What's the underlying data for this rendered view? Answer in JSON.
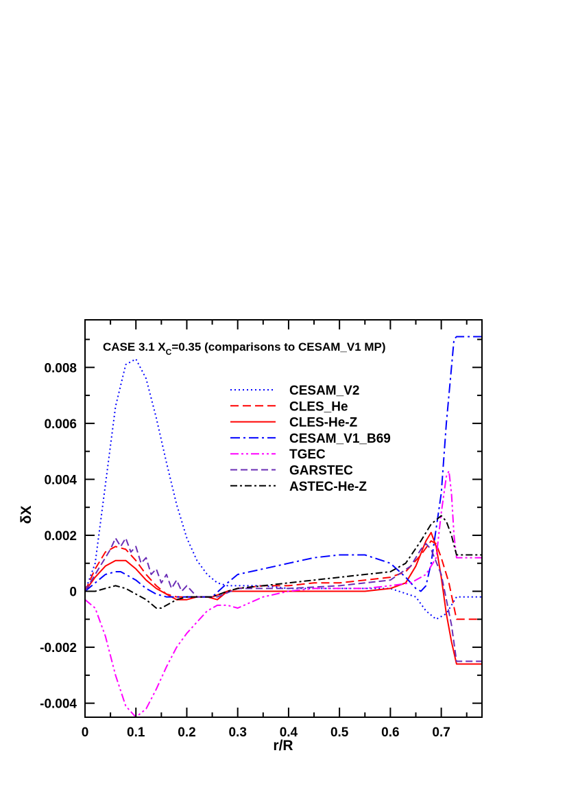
{
  "chart_data": {
    "type": "line",
    "title_prefix": "CASE 3.1 X",
    "title_sub": "C",
    "title_suffix": "=0.35 (comparisons to CESAM_V1 MP)",
    "xlabel": "r/R",
    "ylabel": "δX",
    "xlim": [
      0,
      0.78
    ],
    "ylim": [
      -0.0045,
      0.0097
    ],
    "xticks": [
      0,
      0.1,
      0.2,
      0.3,
      0.4,
      0.5,
      0.6,
      0.7
    ],
    "xtick_labels": [
      "0",
      "0.1",
      "0.2",
      "0.3",
      "0.4",
      "0.5",
      "0.6",
      "0.7"
    ],
    "yticks": [
      -0.004,
      -0.002,
      0,
      0.002,
      0.004,
      0.006,
      0.008
    ],
    "ytick_labels": [
      "-0.004",
      "-0.002",
      "0",
      "0.002",
      "0.004",
      "0.006",
      "0.008"
    ],
    "grid": false,
    "legend_position": "top-center",
    "series": [
      {
        "name": "CESAM_V2",
        "color": "#0000ff",
        "dash": "2,4",
        "x": [
          0,
          0.02,
          0.04,
          0.06,
          0.08,
          0.1,
          0.12,
          0.14,
          0.16,
          0.18,
          0.2,
          0.22,
          0.24,
          0.26,
          0.28,
          0.3,
          0.35,
          0.4,
          0.45,
          0.5,
          0.55,
          0.6,
          0.65,
          0.67,
          0.69,
          0.71,
          0.73,
          0.735,
          0.78
        ],
        "y": [
          0.0,
          0.001,
          0.0038,
          0.0066,
          0.0081,
          0.0083,
          0.0076,
          0.0062,
          0.0046,
          0.0031,
          0.0019,
          0.0011,
          0.0006,
          0.0003,
          0.0002,
          0.0002,
          0.0002,
          0.0001,
          0.0001,
          0.0001,
          0.0001,
          0.0001,
          -0.0002,
          -0.0007,
          -0.001,
          -0.0008,
          -0.0002,
          -0.0002,
          -0.0002
        ]
      },
      {
        "name": "CLES_He",
        "color": "#ff0000",
        "dash": "12,6",
        "x": [
          0,
          0.02,
          0.04,
          0.06,
          0.08,
          0.1,
          0.12,
          0.14,
          0.16,
          0.18,
          0.2,
          0.22,
          0.25,
          0.28,
          0.3,
          0.35,
          0.4,
          0.45,
          0.5,
          0.55,
          0.6,
          0.63,
          0.66,
          0.68,
          0.69,
          0.7,
          0.715,
          0.73,
          0.735,
          0.78
        ],
        "y": [
          0.0,
          0.0008,
          0.0014,
          0.0016,
          0.0015,
          0.0011,
          0.0006,
          0.0002,
          -0.0001,
          -0.0002,
          -0.0002,
          -0.0002,
          -0.0002,
          0.0,
          0.0001,
          0.0002,
          0.0002,
          0.0003,
          0.0003,
          0.0004,
          0.0005,
          0.0007,
          0.0013,
          0.0018,
          0.0017,
          0.0012,
          0.0003,
          -0.001,
          -0.001,
          -0.001
        ]
      },
      {
        "name": "CLES-He-Z",
        "color": "#ff0000",
        "dash": "",
        "x": [
          0,
          0.02,
          0.04,
          0.06,
          0.08,
          0.1,
          0.12,
          0.14,
          0.16,
          0.18,
          0.2,
          0.22,
          0.24,
          0.26,
          0.28,
          0.3,
          0.35,
          0.4,
          0.45,
          0.5,
          0.55,
          0.6,
          0.63,
          0.65,
          0.67,
          0.68,
          0.69,
          0.7,
          0.71,
          0.72,
          0.73,
          0.78
        ],
        "y": [
          0.0,
          0.0005,
          0.0009,
          0.0011,
          0.0011,
          0.0008,
          0.0004,
          0.0001,
          -0.0001,
          -0.0003,
          -0.0003,
          -0.0002,
          -0.0002,
          -0.0003,
          0.0,
          0.0,
          0.0,
          0.0,
          0.0,
          0.0,
          0.0,
          0.0001,
          0.0003,
          0.0009,
          0.0018,
          0.0021,
          0.0016,
          0.0005,
          -0.0008,
          -0.0018,
          -0.0026,
          -0.0026
        ]
      },
      {
        "name": "CESAM_V1_B69",
        "color": "#0000ff",
        "dash": "14,5,3,5",
        "x": [
          0,
          0.02,
          0.04,
          0.06,
          0.07,
          0.08,
          0.1,
          0.12,
          0.14,
          0.16,
          0.18,
          0.2,
          0.22,
          0.25,
          0.28,
          0.3,
          0.35,
          0.4,
          0.45,
          0.5,
          0.55,
          0.6,
          0.63,
          0.65,
          0.66,
          0.67,
          0.68,
          0.7,
          0.71,
          0.72,
          0.725,
          0.73,
          0.78
        ],
        "y": [
          0.0,
          0.0003,
          0.0006,
          0.0007,
          0.0007,
          0.0006,
          0.0004,
          0.0001,
          -0.0001,
          -0.0002,
          -0.0002,
          -0.0002,
          -0.0002,
          -0.0002,
          0.0003,
          0.0006,
          0.0008,
          0.001,
          0.0012,
          0.0013,
          0.0013,
          0.001,
          0.0005,
          0.0001,
          0.0,
          0.0002,
          0.001,
          0.0035,
          0.006,
          0.008,
          0.009,
          0.0091,
          0.0091
        ]
      },
      {
        "name": "TGEC",
        "color": "#ff00ff",
        "dash": "12,4,3,4,3,4",
        "x": [
          0,
          0.02,
          0.04,
          0.06,
          0.08,
          0.1,
          0.12,
          0.14,
          0.16,
          0.18,
          0.2,
          0.22,
          0.24,
          0.26,
          0.28,
          0.3,
          0.35,
          0.4,
          0.45,
          0.5,
          0.55,
          0.6,
          0.64,
          0.67,
          0.69,
          0.7,
          0.71,
          0.715,
          0.72,
          0.725,
          0.73,
          0.78
        ],
        "y": [
          -0.0003,
          -0.0006,
          -0.0016,
          -0.003,
          -0.0041,
          -0.0045,
          -0.0042,
          -0.0035,
          -0.0027,
          -0.002,
          -0.0015,
          -0.0011,
          -0.0007,
          -0.0005,
          -0.0005,
          -0.0006,
          -0.0002,
          0.0,
          0.0001,
          0.0001,
          0.0001,
          0.0002,
          0.0003,
          0.0006,
          0.0012,
          0.0028,
          0.0041,
          0.0043,
          0.0035,
          0.002,
          0.0012,
          0.0012
        ]
      },
      {
        "name": "GARSTEC",
        "color": "#6a2db5",
        "dash": "10,5",
        "x": [
          0,
          0.02,
          0.04,
          0.05,
          0.06,
          0.07,
          0.08,
          0.09,
          0.1,
          0.11,
          0.12,
          0.13,
          0.14,
          0.15,
          0.16,
          0.17,
          0.18,
          0.19,
          0.2,
          0.22,
          0.24,
          0.26,
          0.3,
          0.4,
          0.5,
          0.6,
          0.64,
          0.66,
          0.67,
          0.68,
          0.7,
          0.72,
          0.73,
          0.78
        ],
        "y": [
          0.0,
          0.0006,
          0.0012,
          0.0015,
          0.0019,
          0.0016,
          0.0019,
          0.0014,
          0.0016,
          0.001,
          0.0012,
          0.0006,
          0.0008,
          0.0003,
          0.0006,
          0.0001,
          0.0004,
          0.0,
          0.0002,
          -0.0002,
          -0.0002,
          -0.0002,
          0.0001,
          0.0001,
          0.0002,
          0.0004,
          0.0009,
          0.0015,
          0.0017,
          0.0015,
          0.0006,
          -0.0012,
          -0.0025,
          -0.0025
        ]
      },
      {
        "name": "ASTEC-He-Z",
        "color": "#000000",
        "dash": "10,4,3,4",
        "x": [
          0,
          0.02,
          0.04,
          0.06,
          0.08,
          0.1,
          0.12,
          0.14,
          0.15,
          0.16,
          0.18,
          0.2,
          0.22,
          0.25,
          0.28,
          0.3,
          0.35,
          0.4,
          0.45,
          0.5,
          0.55,
          0.6,
          0.63,
          0.66,
          0.68,
          0.7,
          0.71,
          0.72,
          0.73,
          0.78
        ],
        "y": [
          0.0,
          0.0,
          0.0001,
          0.0002,
          0.0001,
          -0.0001,
          -0.0003,
          -0.0006,
          -0.0006,
          -0.0005,
          -0.0003,
          -0.0002,
          -0.0002,
          -0.0002,
          0.0,
          0.0001,
          0.0002,
          0.0003,
          0.0004,
          0.0005,
          0.0006,
          0.0007,
          0.001,
          0.0018,
          0.0024,
          0.0027,
          0.0025,
          0.002,
          0.0013,
          0.0013
        ]
      }
    ]
  }
}
